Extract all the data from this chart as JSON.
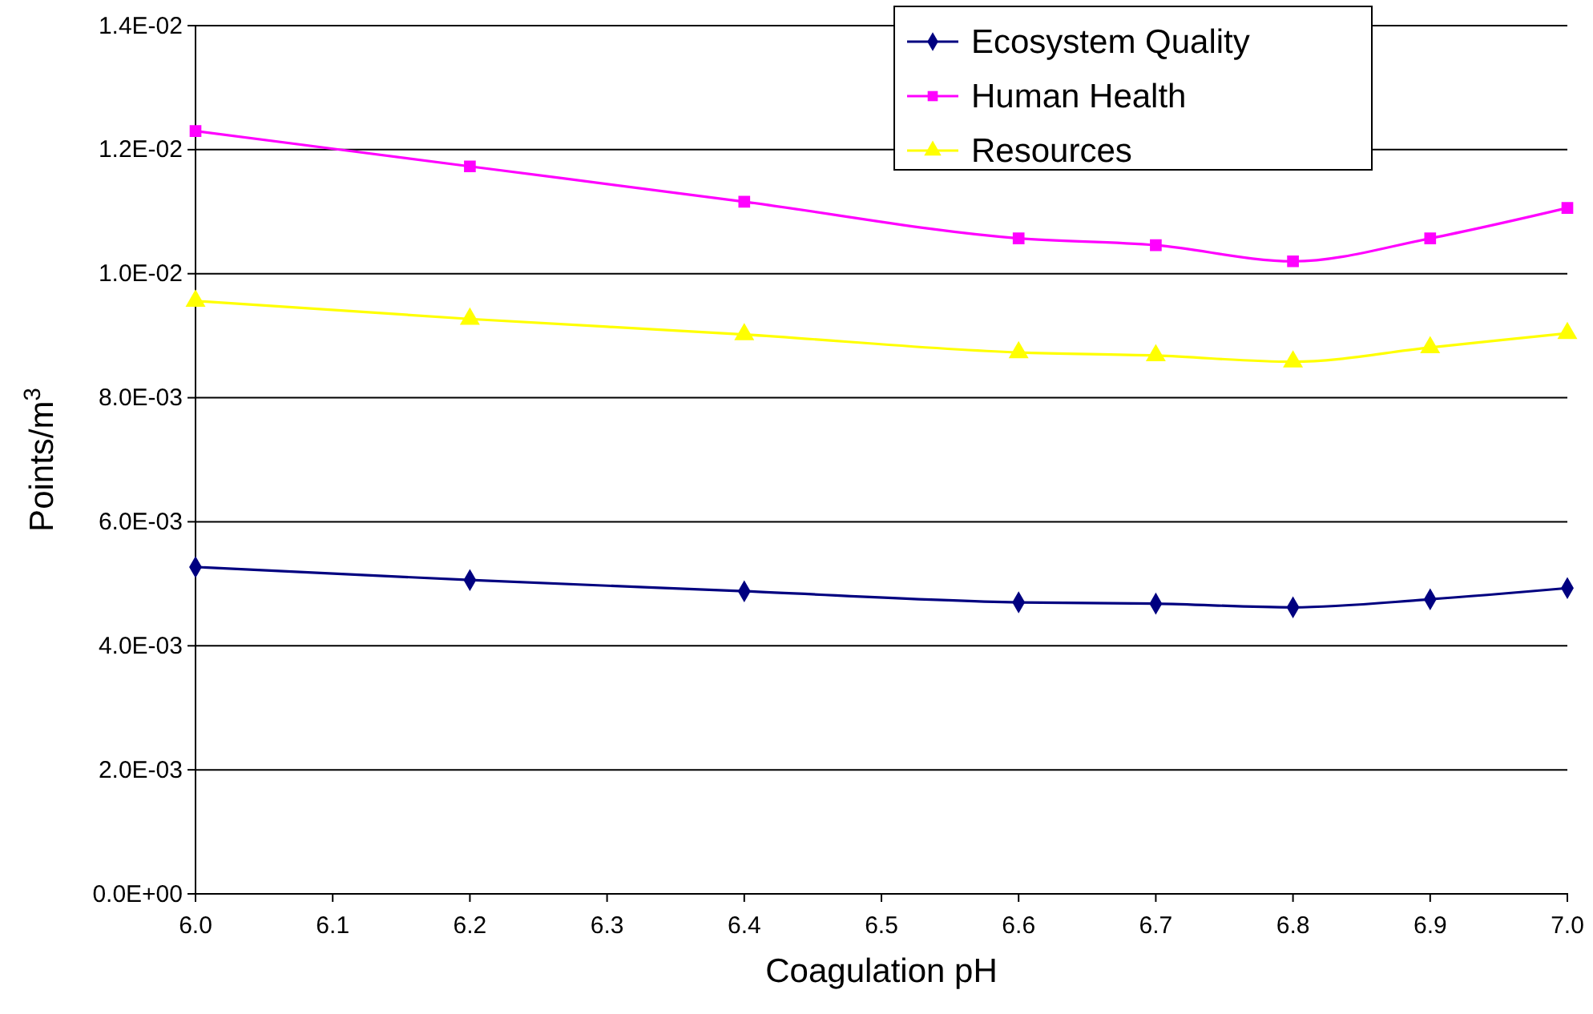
{
  "chart_data": {
    "type": "line",
    "xlabel": "Coagulation pH",
    "ylabel": "Points/m$^{3}$",
    "x": [
      6.0,
      6.2,
      6.4,
      6.6,
      6.7,
      6.8,
      6.9,
      7.0
    ],
    "series": [
      {
        "name": "Ecosystem Quality",
        "color": "#000080",
        "marker": "diamond",
        "values": [
          0.00527,
          0.00506,
          0.00488,
          0.0047,
          0.00468,
          0.00462,
          0.00475,
          0.00493
        ]
      },
      {
        "name": "Human Health",
        "color": "#ff00ff",
        "marker": "square",
        "values": [
          0.0123,
          0.01173,
          0.01116,
          0.01057,
          0.01046,
          0.0102,
          0.01057,
          0.01106
        ]
      },
      {
        "name": "Resources",
        "color": "#ffff00",
        "marker": "triangle",
        "values": [
          0.00956,
          0.00927,
          0.00902,
          0.00873,
          0.00868,
          0.00858,
          0.00881,
          0.00904
        ]
      }
    ],
    "xlim": [
      6.0,
      7.0
    ],
    "xticks": [
      {
        "value": 6.0,
        "label": "6.0"
      },
      {
        "value": 6.1,
        "label": "6.1"
      },
      {
        "value": 6.2,
        "label": "6.2"
      },
      {
        "value": 6.3,
        "label": "6.3"
      },
      {
        "value": 6.4,
        "label": "6.4"
      },
      {
        "value": 6.5,
        "label": "6.5"
      },
      {
        "value": 6.6,
        "label": "6.6"
      },
      {
        "value": 6.7,
        "label": "6.7"
      },
      {
        "value": 6.8,
        "label": "6.8"
      },
      {
        "value": 6.9,
        "label": "6.9"
      },
      {
        "value": 7.0,
        "label": "7.0"
      }
    ],
    "ylim": [
      0,
      0.014
    ],
    "yticks": [
      {
        "value": 0,
        "label": "0.0E+00"
      },
      {
        "value": 0.002,
        "label": "2.0E-03"
      },
      {
        "value": 0.004,
        "label": "4.0E-03"
      },
      {
        "value": 0.006,
        "label": "6.0E-03"
      },
      {
        "value": 0.008,
        "label": "8.0E-03"
      },
      {
        "value": 0.01,
        "label": "1.0E-02"
      },
      {
        "value": 0.012,
        "label": "1.2E-02"
      },
      {
        "value": 0.014,
        "label": "1.4E-02"
      }
    ],
    "grid": "y",
    "legend": "top right",
    "line_style": "solid"
  }
}
